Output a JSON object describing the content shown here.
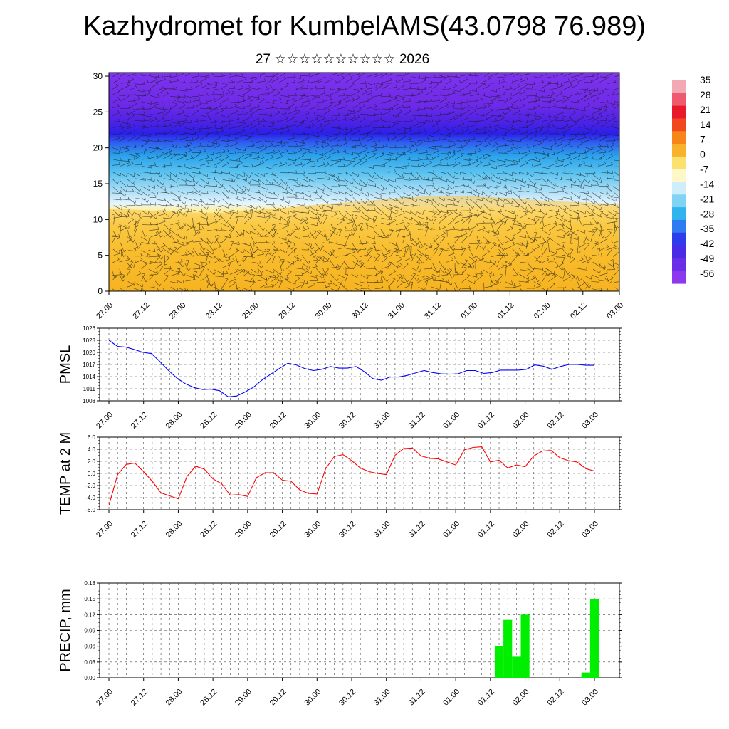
{
  "title": "Kazhydromet for KumbelAMS(43.0798 76.989)",
  "subtitle": "27 ☆☆☆☆☆☆☆☆☆☆ 2026",
  "chart_data": [
    {
      "type": "heatmap",
      "name": "cross-section",
      "x_ticks": [
        "27.00",
        "27.12",
        "28.00",
        "28.12",
        "29.00",
        "29.12",
        "30.00",
        "30.12",
        "31.00",
        "31.12",
        "01.00",
        "01.12",
        "02.00",
        "02.12",
        "03.00"
      ],
      "y_ticks": [
        0,
        5,
        10,
        15,
        20,
        25,
        30
      ],
      "ylim": [
        0,
        30.5
      ],
      "colorbar_labels": [
        "35",
        "28",
        "21",
        "14",
        "7",
        "0",
        "-7",
        "-14",
        "-21",
        "-28",
        "-35",
        "-42",
        "-49",
        "-56"
      ],
      "freezing_level": [
        11.5,
        11.3,
        11.0,
        10.9,
        11.3,
        11.7,
        12.2,
        12.6,
        13.0,
        13.3,
        13.2,
        13.0,
        12.6,
        12.4,
        12.1
      ]
    },
    {
      "type": "line",
      "ylabel": "PMSL",
      "x_ticks": [
        "27.00",
        "27.12",
        "28.00",
        "28.12",
        "29.00",
        "29.12",
        "30.00",
        "30.12",
        "31.00",
        "31.12",
        "01.00",
        "01.12",
        "02.00",
        "02.12",
        "03.00"
      ],
      "y_ticks": [
        "1008",
        "1011",
        "1014",
        "1017",
        "1020",
        "1023",
        "1026"
      ],
      "ylim": [
        1008,
        1026
      ],
      "line_color": "#0000ff",
      "values": [
        1023.0,
        1021.5,
        1021.3,
        1020.7,
        1020.0,
        1019.7,
        1017.7,
        1015.5,
        1013.6,
        1012.2,
        1011.3,
        1010.8,
        1010.9,
        1010.5,
        1009.0,
        1009.2,
        1010.2,
        1011.4,
        1013.2,
        1014.6,
        1016.0,
        1017.3,
        1016.9,
        1016.0,
        1015.5,
        1015.8,
        1016.5,
        1016.1,
        1016.1,
        1016.5,
        1015.2,
        1013.5,
        1013.1,
        1013.9,
        1013.9,
        1014.3,
        1014.9,
        1015.5,
        1015.0,
        1014.7,
        1014.6,
        1014.7,
        1015.5,
        1015.5,
        1014.8,
        1015.0,
        1015.6,
        1015.6,
        1015.6,
        1015.8,
        1016.9,
        1016.6,
        1015.8,
        1016.5,
        1017.0,
        1017.0,
        1016.8,
        1016.8
      ]
    },
    {
      "type": "line",
      "ylabel": "TEMP at 2 M",
      "x_ticks": [
        "27.00",
        "27.12",
        "28.00",
        "28.12",
        "29.00",
        "29.12",
        "30.00",
        "30.12",
        "31.00",
        "31.12",
        "01.00",
        "01.12",
        "02.00",
        "02.12",
        "03.00"
      ],
      "y_ticks": [
        "-6.0",
        "-4.0",
        "-2.0",
        "0.0",
        "2.0",
        "4.0",
        "6.0"
      ],
      "ylim": [
        -6,
        6
      ],
      "line_color": "#ff0000",
      "values": [
        -5.3,
        -0.2,
        1.5,
        1.7,
        0.3,
        -1.3,
        -3.2,
        -3.7,
        -4.2,
        -0.5,
        1.2,
        0.7,
        -0.9,
        -1.7,
        -3.6,
        -3.5,
        -3.8,
        -0.7,
        0.1,
        0.1,
        -1.1,
        -1.3,
        -2.7,
        -3.3,
        -3.4,
        0.8,
        2.8,
        3.1,
        2.1,
        0.9,
        0.3,
        0.0,
        -0.2,
        3.0,
        4.1,
        4.2,
        2.9,
        2.5,
        2.4,
        1.9,
        1.4,
        3.9,
        4.3,
        4.4,
        1.9,
        2.2,
        0.9,
        1.4,
        1.1,
        2.9,
        3.7,
        3.8,
        2.6,
        2.1,
        1.9,
        0.8,
        0.4
      ]
    },
    {
      "type": "bar",
      "ylabel": "PRECIP, mm",
      "x_ticks": [
        "27.00",
        "27.12",
        "28.00",
        "28.12",
        "29.00",
        "29.12",
        "30.00",
        "30.12",
        "31.00",
        "31.12",
        "01.00",
        "01.12",
        "02.00",
        "02.12",
        "03.00"
      ],
      "y_ticks": [
        "0.00",
        "0.03",
        "0.06",
        "0.09",
        "0.12",
        "0.15",
        "0.18"
      ],
      "ylim": [
        0,
        0.18
      ],
      "bar_color": "#00ee00",
      "values": [
        0,
        0,
        0,
        0,
        0,
        0,
        0,
        0,
        0,
        0,
        0,
        0,
        0,
        0,
        0,
        0,
        0,
        0,
        0,
        0,
        0,
        0,
        0,
        0,
        0,
        0,
        0,
        0,
        0,
        0,
        0,
        0,
        0,
        0,
        0,
        0,
        0,
        0,
        0,
        0,
        0,
        0,
        0,
        0,
        0,
        0.06,
        0.11,
        0.04,
        0.12,
        0,
        0,
        0,
        0,
        0,
        0,
        0.01,
        0.15
      ]
    }
  ]
}
